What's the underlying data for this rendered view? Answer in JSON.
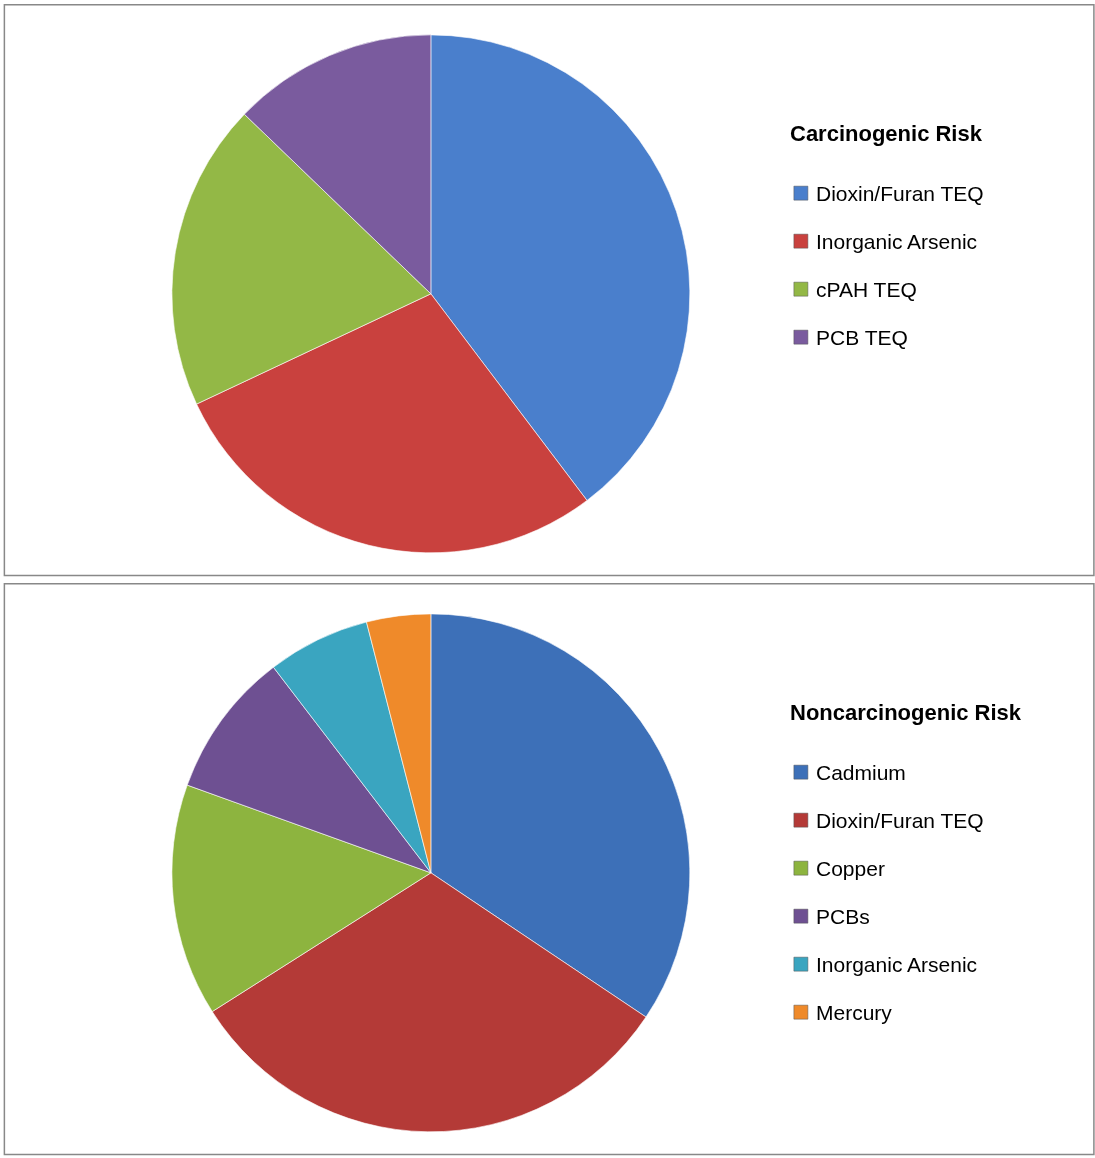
{
  "chart_data": [
    {
      "type": "pie",
      "legend_title": "Carcinogenic Risk",
      "legend": "right",
      "categories": [
        "Dioxin/Furan TEQ",
        "Inorganic Arsenic",
        "cPAH TEQ",
        "PCB TEQ"
      ],
      "values": [
        39.7,
        28.3,
        19.2,
        12.8
      ],
      "colors": [
        "#4a7fcc",
        "#c9413e",
        "#93b846",
        "#7a5b9e"
      ]
    },
    {
      "type": "pie",
      "legend_title": "Noncarcinogenic Risk",
      "legend": "right",
      "categories": [
        "Cadmium",
        "Dioxin/Furan TEQ",
        "Copper",
        "PCBs",
        "Inorganic Arsenic",
        "Mercury"
      ],
      "values": [
        34.4,
        31.6,
        14.5,
        9.1,
        6.4,
        4.0
      ],
      "colors": [
        "#3d70b8",
        "#b43a37",
        "#8db43f",
        "#6e5092",
        "#3aa5c0",
        "#ef8a2a"
      ]
    }
  ]
}
